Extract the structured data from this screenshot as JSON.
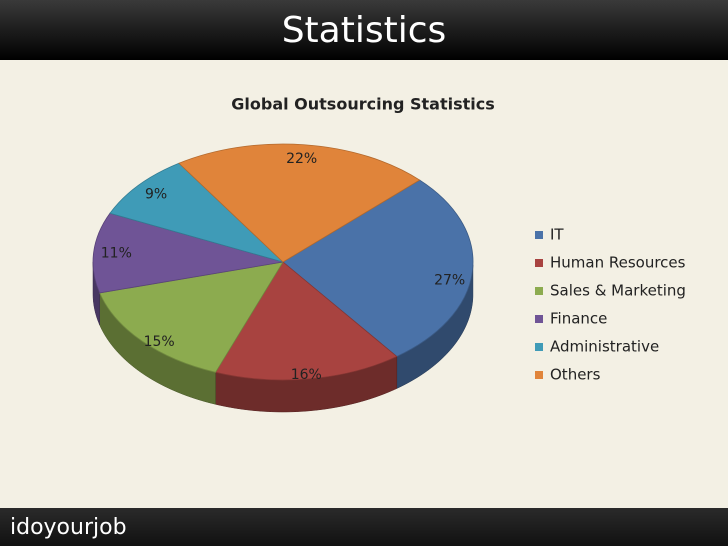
{
  "slide": {
    "heading": "Statistics",
    "logo": "idoyourjob"
  },
  "chart_data": {
    "type": "pie",
    "title": "Global Outsourcing Statistics",
    "categories": [
      "IT",
      "Human Resources",
      "Sales & Marketing",
      "Finance",
      "Administrative",
      "Others"
    ],
    "values": [
      27,
      16,
      15,
      11,
      9,
      22
    ],
    "value_labels": [
      "27%",
      "16%",
      "15%",
      "11%",
      "9%",
      "22%"
    ],
    "colors": [
      "#4a72a8",
      "#a84340",
      "#8cab4f",
      "#6f5496",
      "#3f9bb7",
      "#e0843a"
    ],
    "legend": "right"
  }
}
